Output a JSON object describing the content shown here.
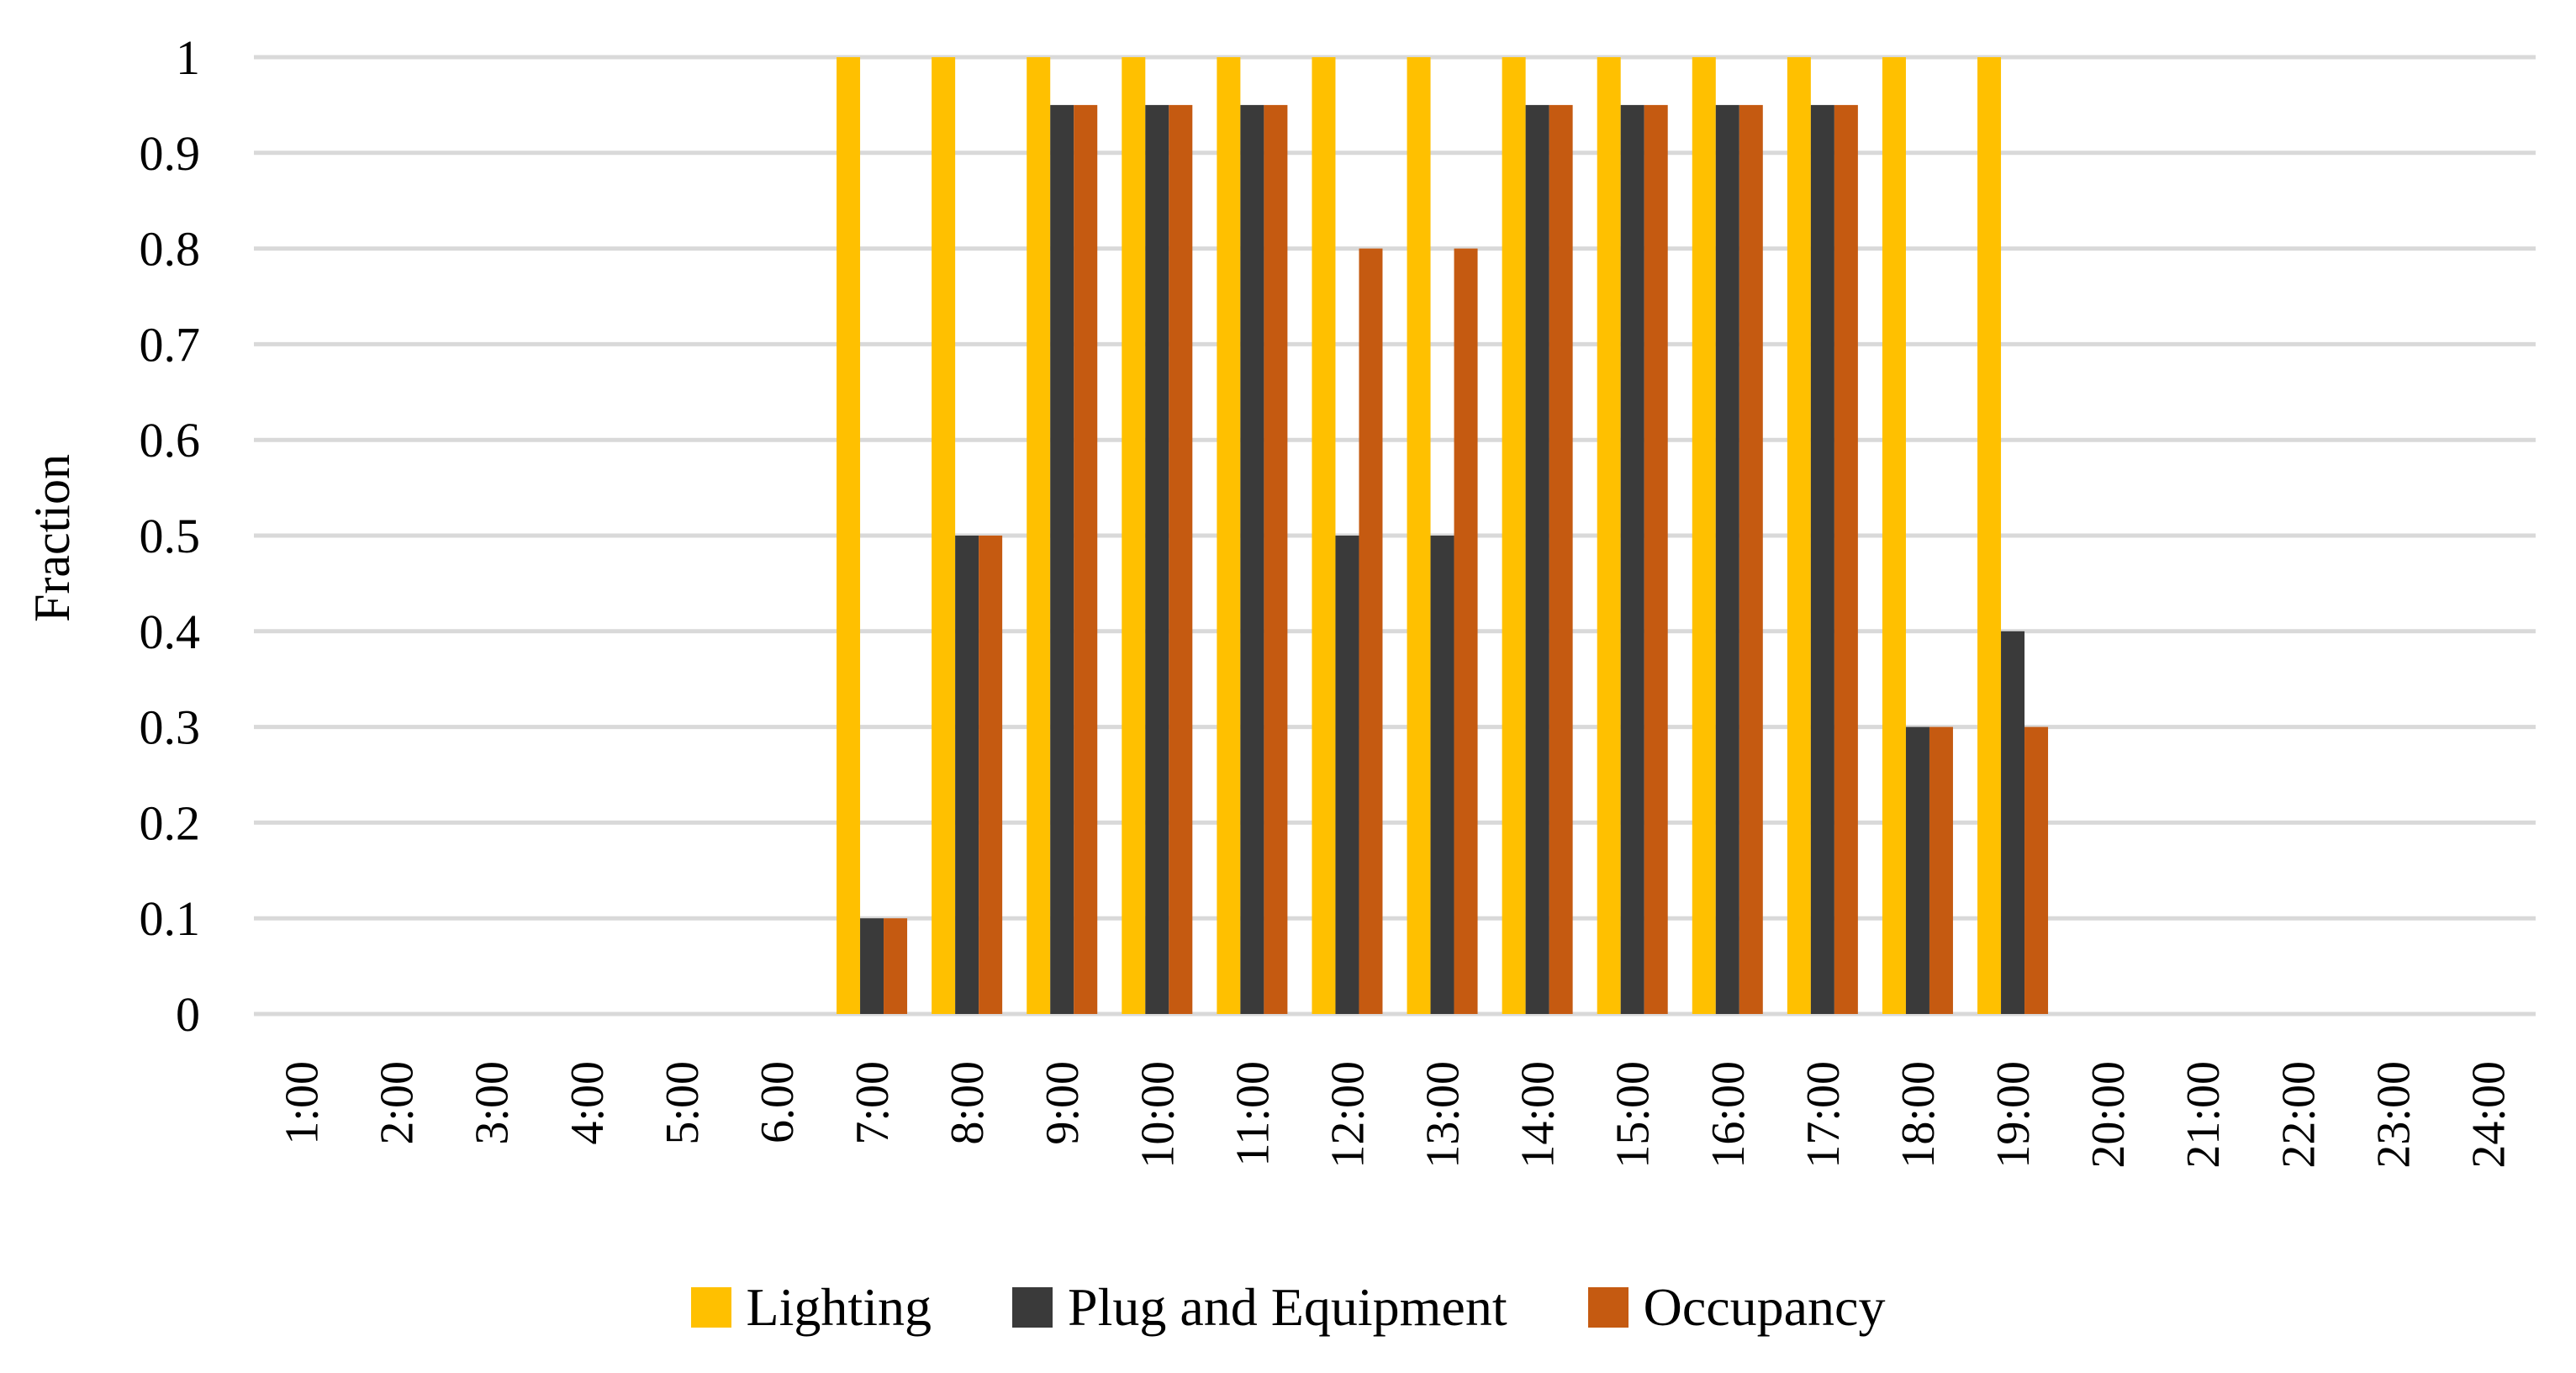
{
  "chart_data": {
    "type": "bar",
    "title": "",
    "xlabel": "",
    "ylabel": "Fraction",
    "ylim": [
      0,
      1
    ],
    "yticks": [
      "0",
      "0.1",
      "0.2",
      "0.3",
      "0.4",
      "0.5",
      "0.6",
      "0.7",
      "0.8",
      "0.9",
      "1"
    ],
    "grid": true,
    "legend_position": "bottom",
    "categories": [
      "1:00",
      "2:00",
      "3:00",
      "4:00",
      "5:00",
      "6.00",
      "7:00",
      "8:00",
      "9:00",
      "10:00",
      "11:00",
      "12:00",
      "13:00",
      "14:00",
      "15:00",
      "16:00",
      "17:00",
      "18:00",
      "19:00",
      "20:00",
      "21:00",
      "22:00",
      "23:00",
      "24:00"
    ],
    "series": [
      {
        "name": "Lighting",
        "color": "#FFC000",
        "values": [
          0,
          0,
          0,
          0,
          0,
          0,
          1,
          1,
          1,
          1,
          1,
          1,
          1,
          1,
          1,
          1,
          1,
          1,
          1,
          0,
          0,
          0,
          0,
          0
        ]
      },
      {
        "name": "Plug and Equipment",
        "color": "#3A3A3A",
        "values": [
          0,
          0,
          0,
          0,
          0,
          0,
          0.1,
          0.5,
          0.95,
          0.95,
          0.95,
          0.5,
          0.5,
          0.95,
          0.95,
          0.95,
          0.95,
          0.3,
          0.4,
          0,
          0,
          0,
          0,
          0
        ]
      },
      {
        "name": "Occupancy",
        "color": "#C55A11",
        "values": [
          0,
          0,
          0,
          0,
          0,
          0,
          0.1,
          0.5,
          0.95,
          0.95,
          0.95,
          0.8,
          0.8,
          0.95,
          0.95,
          0.95,
          0.95,
          0.3,
          0.3,
          0,
          0,
          0,
          0,
          0
        ]
      }
    ]
  }
}
